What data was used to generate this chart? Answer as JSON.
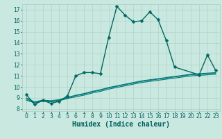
{
  "xlabel": "Humidex (Indice chaleur)",
  "ylabel": "",
  "xlim": [
    -0.5,
    23.5
  ],
  "ylim": [
    7.8,
    17.5
  ],
  "xticks": [
    0,
    1,
    2,
    3,
    4,
    5,
    6,
    7,
    8,
    9,
    10,
    11,
    12,
    13,
    14,
    15,
    16,
    17,
    18,
    19,
    20,
    21,
    22,
    23
  ],
  "yticks": [
    8,
    9,
    10,
    11,
    12,
    13,
    14,
    15,
    16,
    17
  ],
  "background_color": "#c8e8e0",
  "grid_color": "#b0d0c8",
  "line_color": "#006060",
  "curves": [
    {
      "x": [
        0,
        1,
        2,
        3,
        4,
        5,
        6,
        7,
        8,
        9,
        10,
        11,
        12,
        13,
        14,
        15,
        16,
        17,
        18,
        21,
        22,
        23
      ],
      "y": [
        9.3,
        8.4,
        8.8,
        8.5,
        8.7,
        9.2,
        11.0,
        11.3,
        11.3,
        11.2,
        14.5,
        17.3,
        16.5,
        15.9,
        16.0,
        16.8,
        16.1,
        14.2,
        11.8,
        11.1,
        12.9,
        11.5
      ],
      "has_marker": true,
      "marker": "D",
      "markersize": 2.5,
      "linewidth": 1.0,
      "color": "#006860"
    },
    {
      "x": [
        0,
        1,
        2,
        3,
        4,
        5,
        6,
        7,
        8,
        9,
        10,
        11,
        12,
        13,
        14,
        15,
        16,
        17,
        18,
        19,
        20,
        21,
        22,
        23
      ],
      "y": [
        8.8,
        8.55,
        8.7,
        8.65,
        8.75,
        8.95,
        9.1,
        9.25,
        9.45,
        9.6,
        9.8,
        9.95,
        10.1,
        10.25,
        10.4,
        10.5,
        10.6,
        10.7,
        10.8,
        10.9,
        11.0,
        11.05,
        11.1,
        11.15
      ],
      "has_marker": false,
      "linewidth": 0.8,
      "color": "#007878"
    },
    {
      "x": [
        0,
        1,
        2,
        3,
        4,
        5,
        6,
        7,
        8,
        9,
        10,
        11,
        12,
        13,
        14,
        15,
        16,
        17,
        18,
        19,
        20,
        21,
        22,
        23
      ],
      "y": [
        8.9,
        8.6,
        8.75,
        8.7,
        8.8,
        9.0,
        9.2,
        9.35,
        9.55,
        9.7,
        9.9,
        10.05,
        10.2,
        10.35,
        10.5,
        10.6,
        10.7,
        10.8,
        10.9,
        11.0,
        11.1,
        11.15,
        11.2,
        11.25
      ],
      "has_marker": false,
      "linewidth": 0.8,
      "color": "#007878"
    },
    {
      "x": [
        0,
        1,
        2,
        3,
        4,
        5,
        6,
        7,
        8,
        9,
        10,
        11,
        12,
        13,
        14,
        15,
        16,
        17,
        18,
        19,
        20,
        21,
        22,
        23
      ],
      "y": [
        9.0,
        8.65,
        8.8,
        8.75,
        8.85,
        9.05,
        9.25,
        9.4,
        9.6,
        9.75,
        9.95,
        10.1,
        10.25,
        10.4,
        10.55,
        10.65,
        10.75,
        10.85,
        10.95,
        11.05,
        11.15,
        11.2,
        11.25,
        11.3
      ],
      "has_marker": false,
      "linewidth": 0.8,
      "color": "#007878"
    }
  ],
  "tick_fontsize": 5.5,
  "label_fontsize": 7.0
}
